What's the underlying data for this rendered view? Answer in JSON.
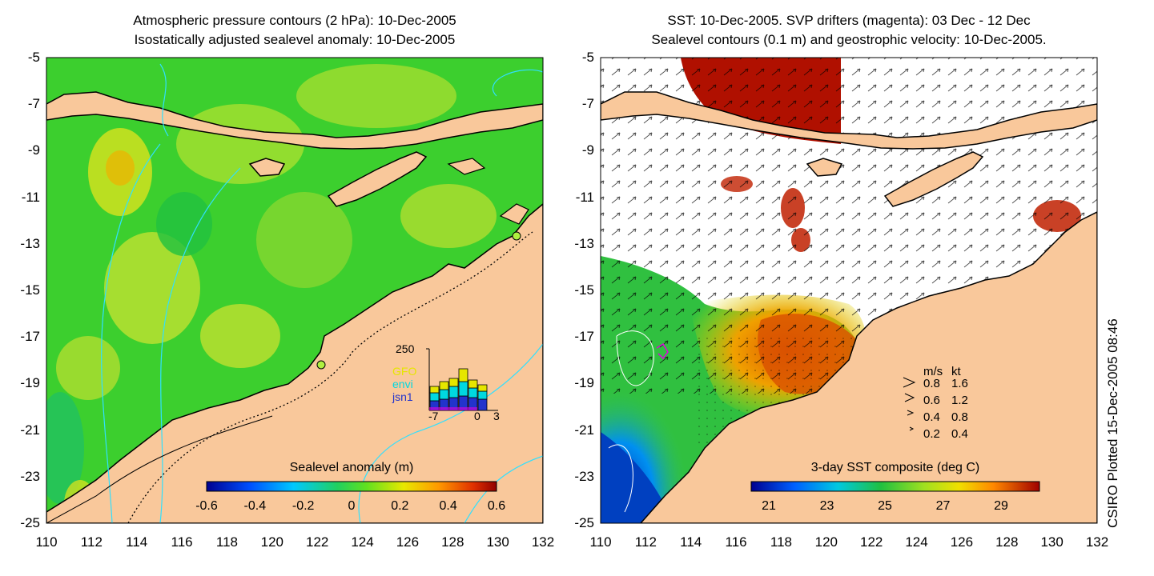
{
  "left_panel": {
    "title_line1": "Atmospheric pressure contours (2 hPa): 10-Dec-2005",
    "title_line2": "Isostatically adjusted sealevel anomaly: 10-Dec-2005",
    "colorbar_title": "Sealevel anomaly (m)",
    "colorbar_ticks": [
      "-0.6",
      "-0.4",
      "-0.2",
      "0",
      "0.2",
      "0.4",
      "0.6"
    ],
    "inset": {
      "y_max_label": "250",
      "x_tick_labels": [
        "-7",
        "0",
        "3"
      ],
      "legend": [
        {
          "label": "GFO",
          "color": "#e6e600"
        },
        {
          "label": "envi",
          "color": "#00d8e0"
        },
        {
          "label": "jsn1",
          "color": "#2233cc"
        }
      ]
    }
  },
  "right_panel": {
    "title_line1": "SST: 10-Dec-2005. SVP drifters (magenta): 03 Dec - 12 Dec",
    "title_line2": "Sealevel contours (0.1 m) and geostrophic velocity: 10-Dec-2005.",
    "colorbar_title": "3-day SST composite (deg C)",
    "colorbar_ticks": [
      "21",
      "23",
      "25",
      "27",
      "29"
    ],
    "velocity_legend": {
      "header_ms": "m/s",
      "header_kt": "kt",
      "rows": [
        {
          "ms": "0.8",
          "kt": "1.6"
        },
        {
          "ms": "0.6",
          "kt": "1.2"
        },
        {
          "ms": "0.4",
          "kt": "0.8"
        },
        {
          "ms": "0.2",
          "kt": "0.4"
        }
      ]
    }
  },
  "axes": {
    "y_ticks": [
      "-5",
      "-7",
      "-9",
      "-11",
      "-13",
      "-15",
      "-17",
      "-19",
      "-21",
      "-23",
      "-25"
    ],
    "x_ticks": [
      "110",
      "112",
      "114",
      "116",
      "118",
      "120",
      "122",
      "124",
      "126",
      "128",
      "130",
      "132"
    ]
  },
  "credit": "CSIRO Plotted 15-Dec-2005 08:46",
  "colors": {
    "land": "#f9c89b",
    "ocean_green": "#3ccf2e",
    "no_data": "#ffffff"
  }
}
